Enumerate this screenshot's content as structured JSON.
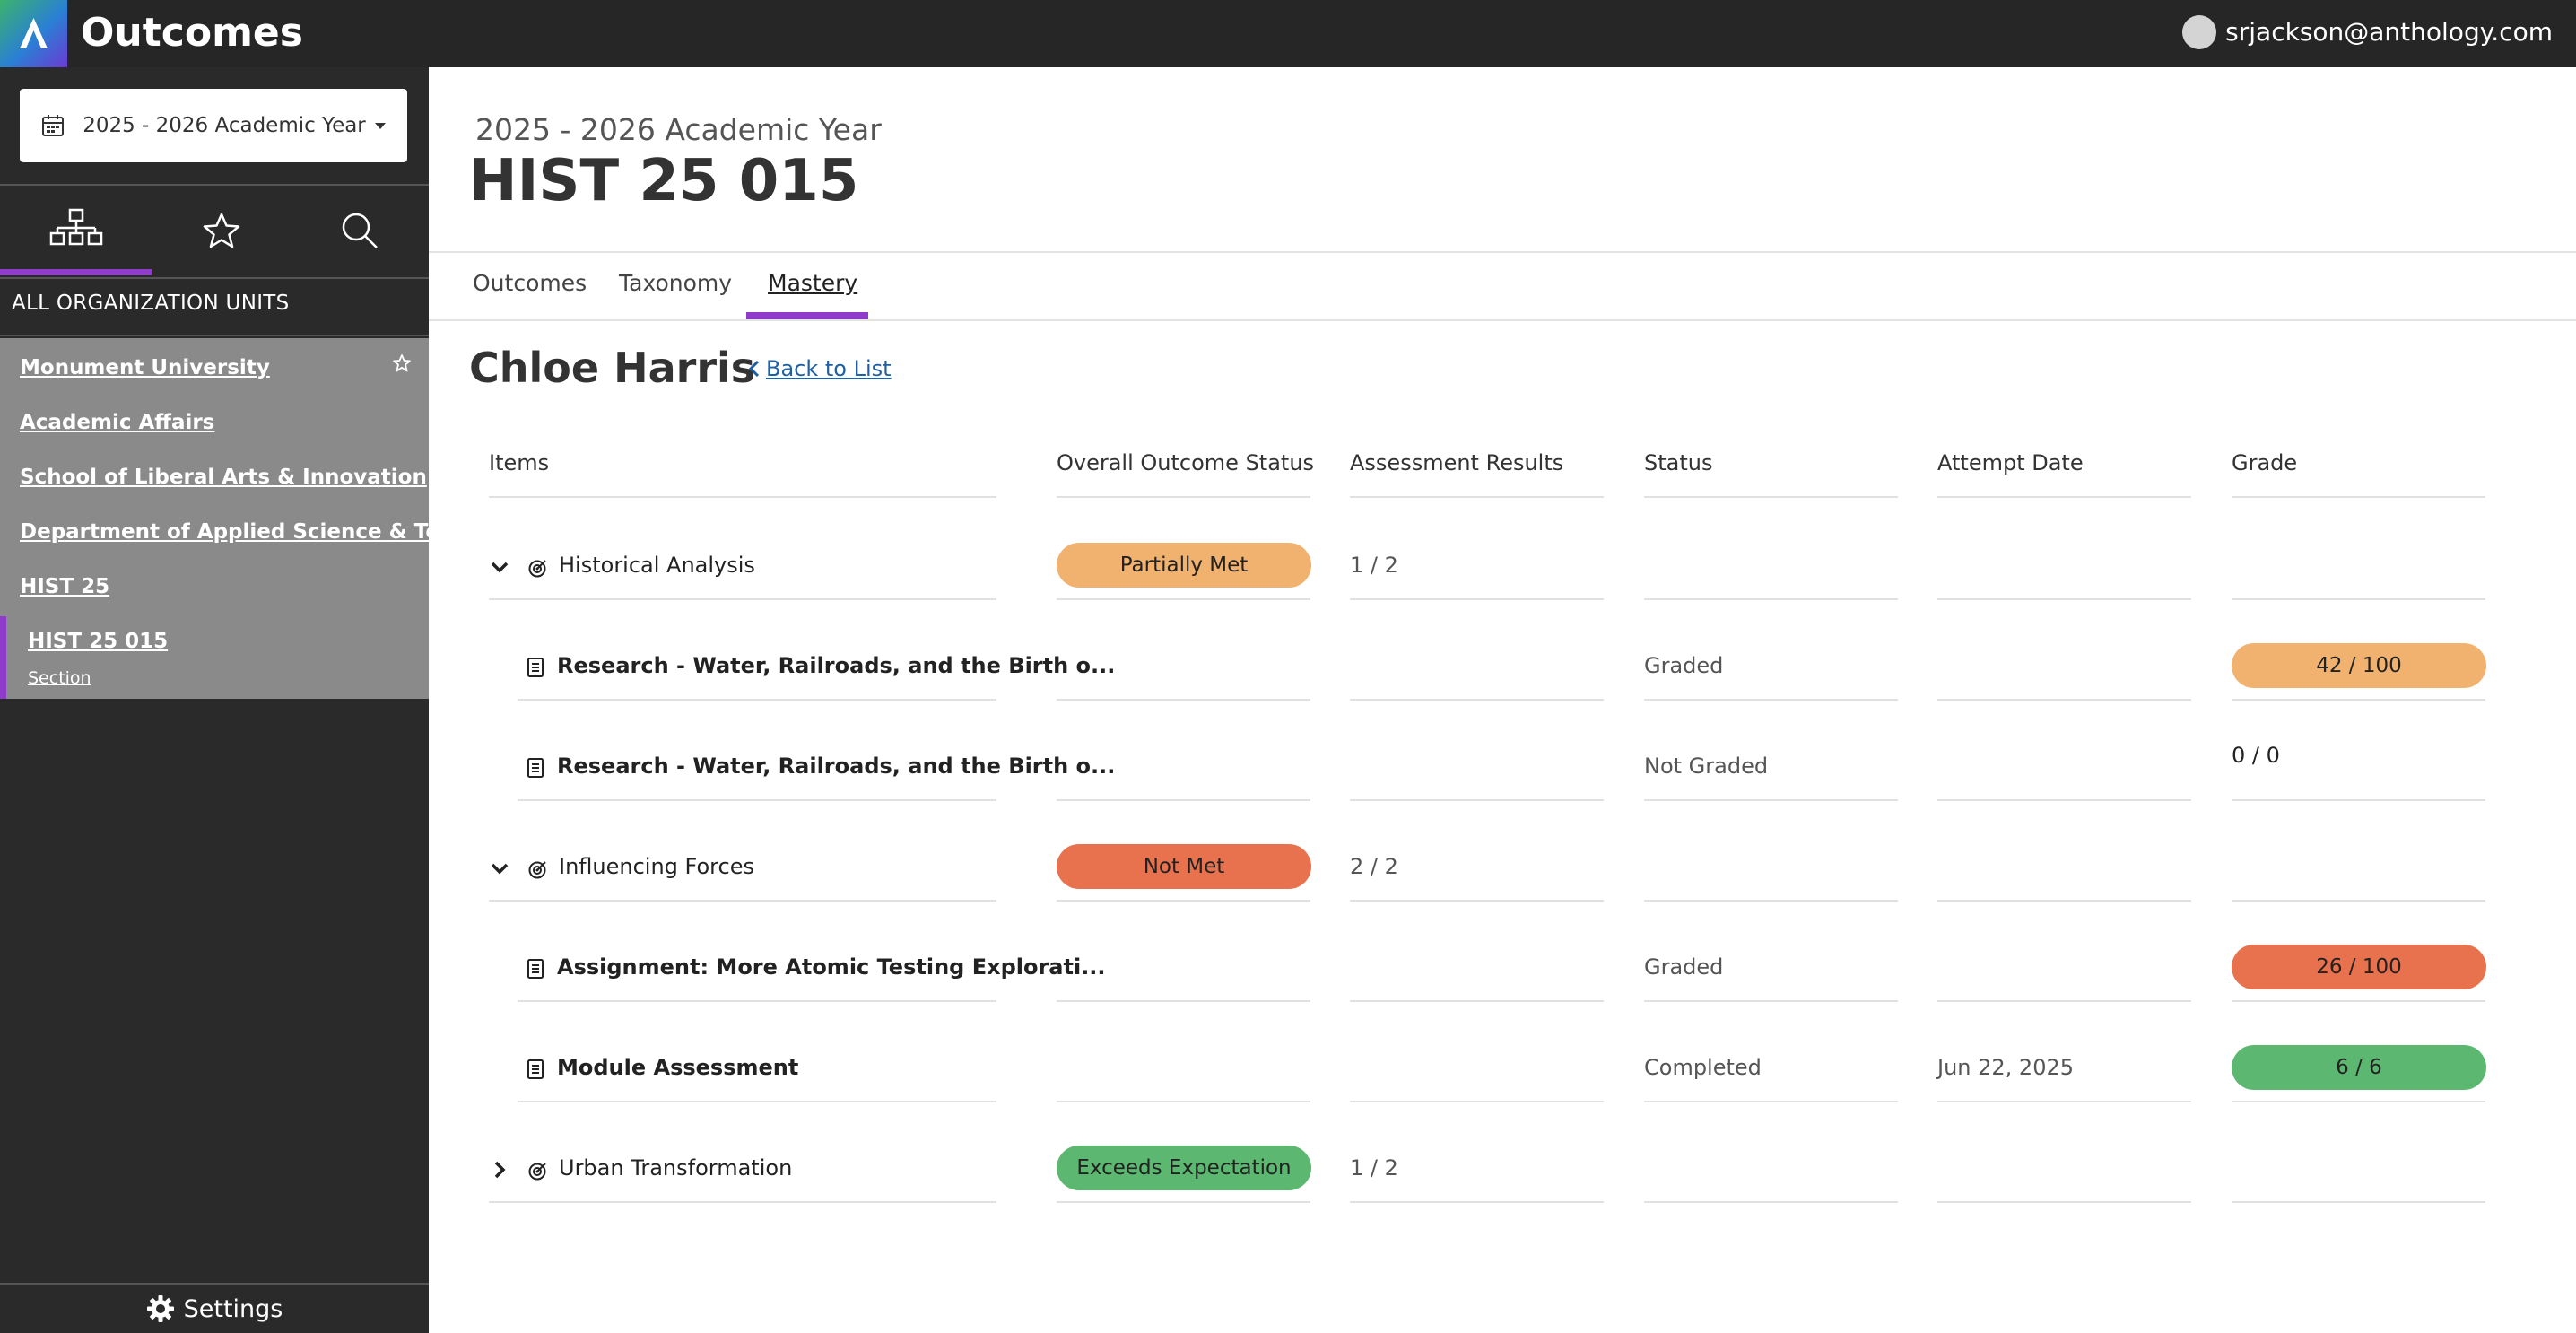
{
  "app": {
    "title": "Outcomes",
    "user_email": "srjackson@anthology.com"
  },
  "sidebar": {
    "year_selector": "2025 - 2026 Academic Year",
    "all_units_label": "ALL ORGANIZATION UNITS",
    "tree": [
      {
        "label": "Monument University"
      },
      {
        "label": "Academic Affairs"
      },
      {
        "label": "School of Liberal Arts & Innovation"
      },
      {
        "label": "Department of Applied Science & Te..."
      },
      {
        "label": "HIST 25"
      },
      {
        "label": "HIST 25 015",
        "sub": "Section"
      }
    ],
    "settings_label": "Settings"
  },
  "header": {
    "subtitle": "2025 - 2026 Academic Year",
    "title": "HIST 25 015"
  },
  "tabs": [
    {
      "label": "Outcomes"
    },
    {
      "label": "Taxonomy"
    },
    {
      "label": "Mastery"
    }
  ],
  "student": {
    "name": "Chloe Harris",
    "back_label": "Back to List"
  },
  "table": {
    "columns": [
      "Items",
      "Overall Outcome Status",
      "Assessment Results",
      "Status",
      "Attempt Date",
      "Grade"
    ],
    "rows": [
      {
        "type": "outcome",
        "expanded": true,
        "item": "Historical Analysis",
        "outcome_status": "Partially Met",
        "outcome_color": "#f2b26f",
        "results": "1 / 2",
        "status": "",
        "date": "",
        "grade": ""
      },
      {
        "type": "assessment",
        "item": "Research - Water, Railroads, and the Birth o...",
        "outcome_status": "",
        "results": "",
        "status": "Graded",
        "date": "",
        "grade": "42 / 100",
        "grade_color": "#f2b26f"
      },
      {
        "type": "assessment",
        "item": "Research - Water, Railroads, and the Birth o...",
        "outcome_status": "",
        "results": "",
        "status": "Not Graded",
        "date": "",
        "grade": "0 / 0"
      },
      {
        "type": "outcome",
        "expanded": true,
        "item": "Influencing Forces",
        "outcome_status": "Not Met",
        "outcome_color": "#e8714e",
        "results": "2 / 2",
        "status": "",
        "date": "",
        "grade": ""
      },
      {
        "type": "assessment",
        "item": "Assignment: More Atomic Testing Explorati...",
        "outcome_status": "",
        "results": "",
        "status": "Graded",
        "date": "",
        "grade": "26 / 100",
        "grade_color": "#e8714e"
      },
      {
        "type": "assessment",
        "item": "Module Assessment",
        "outcome_status": "",
        "results": "",
        "status": "Completed",
        "date": "Jun 22, 2025",
        "grade": "6 / 6",
        "grade_color": "#5cb870"
      },
      {
        "type": "outcome",
        "expanded": false,
        "item": "Urban Transformation",
        "outcome_status": "Exceeds Expectation",
        "outcome_color": "#5cb870",
        "results": "1 / 2",
        "status": "",
        "date": "",
        "grade": ""
      }
    ]
  }
}
